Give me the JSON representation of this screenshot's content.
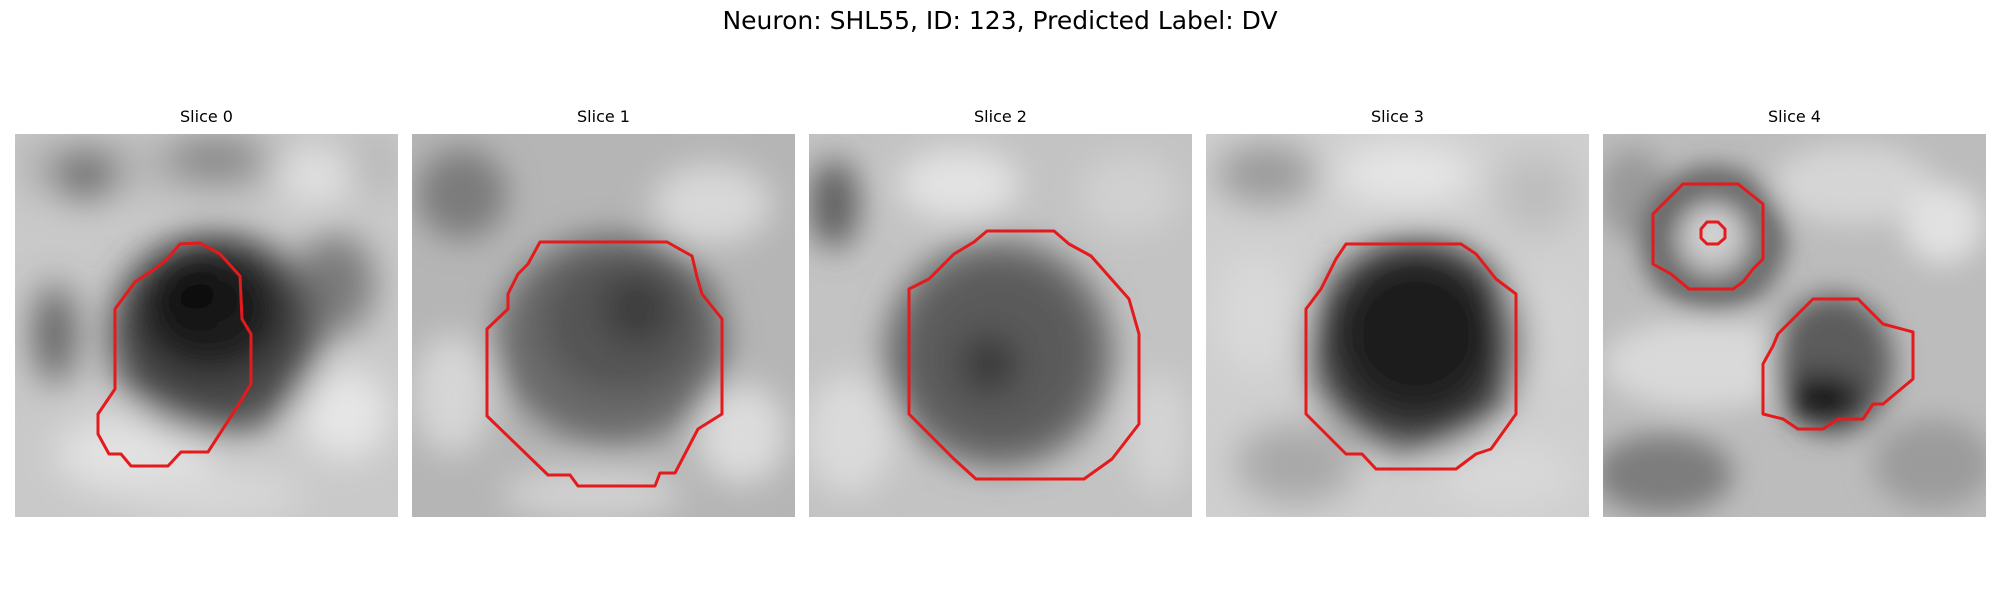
{
  "figure": {
    "title": "Neuron: SHL55, ID: 123, Predicted Label: DV"
  },
  "slices": [
    {
      "title": "Slice 0"
    },
    {
      "title": "Slice 1"
    },
    {
      "title": "Slice 2"
    },
    {
      "title": "Slice 3"
    },
    {
      "title": "Slice 4"
    }
  ],
  "colors": {
    "contour": "#e41a1c",
    "background": "#ffffff"
  }
}
